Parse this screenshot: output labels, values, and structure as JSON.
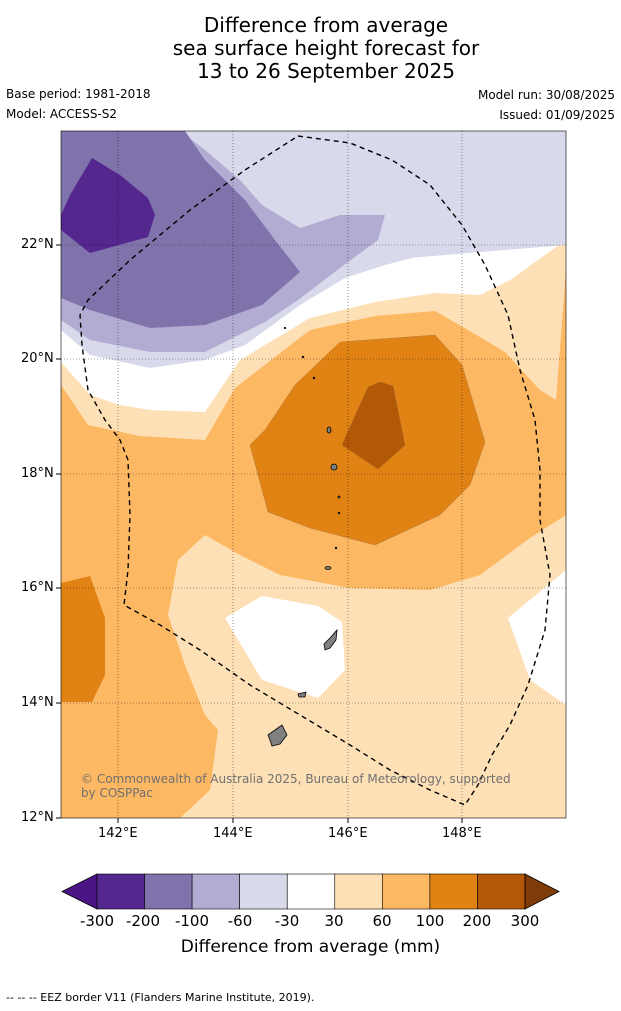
{
  "title": {
    "line1": "Difference from average",
    "line2": "sea surface height forecast for",
    "line3": "13 to 26 September 2025"
  },
  "meta": {
    "base_period": "Base period: 1981-2018",
    "model": "Model: ACCESS-S2",
    "model_run": "Model run: 30/08/2025",
    "issued": "Issued: 01/09/2025"
  },
  "map": {
    "lon_range": [
      141,
      149.8
    ],
    "lat_range": [
      12,
      24
    ],
    "lon_ticks": [
      "142°E",
      "144°E",
      "146°E",
      "148°E"
    ],
    "lat_ticks": [
      "22°N",
      "20°N",
      "18°N",
      "16°N",
      "14°N",
      "12°N"
    ],
    "copyright": "© Commonwealth of Australia 2025, Bureau of Meteorology, supported by COSPPac"
  },
  "legend": {
    "title": "Difference from average (mm)",
    "labels": [
      "-300",
      "-200",
      "-100",
      "-60",
      "-30",
      "30",
      "60",
      "100",
      "200",
      "300"
    ],
    "colors": [
      "#4a1486",
      "#54278f",
      "#8073ac",
      "#b2abd2",
      "#d8daeb",
      "#ffffff",
      "#fee0b6",
      "#fdb863",
      "#e08214",
      "#b35806",
      "#7f3b08"
    ]
  },
  "footer": "--  --  -- EEZ border V11 (Flanders Marine Institute, 2019)."
}
